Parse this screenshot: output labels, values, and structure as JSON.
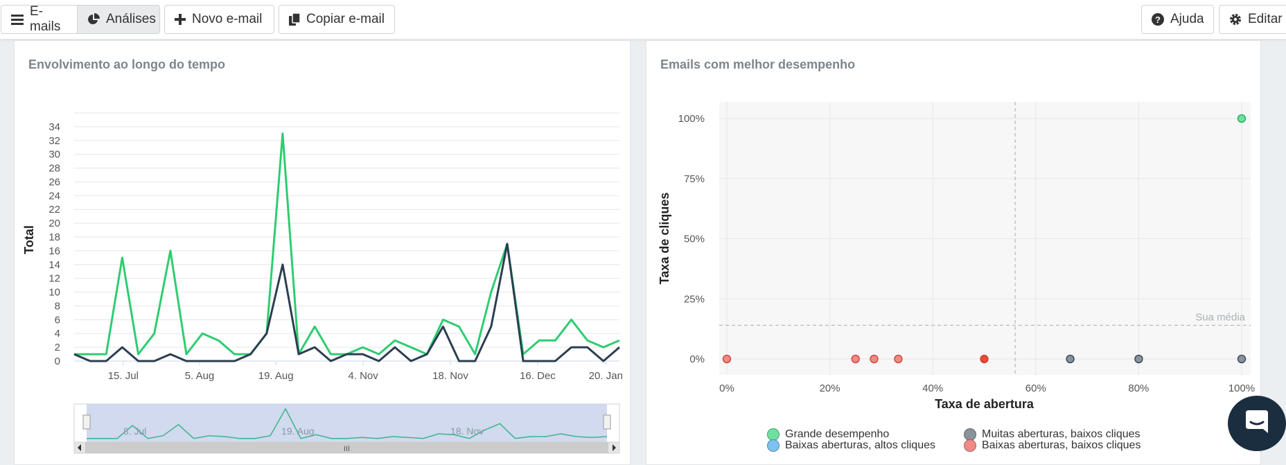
{
  "toolbar": {
    "emails_label": "E-mails",
    "analyses_label": "Análises",
    "new_email_label": "Novo e-mail",
    "copy_email_label": "Copiar e-mail",
    "help_label": "Ajuda",
    "edit_label": "Editar"
  },
  "engagement": {
    "title": "Envolvimento ao longo do tempo",
    "y_label": "Total",
    "navigator_labels": [
      "8. Jul",
      "19. Aug",
      "18. Nov"
    ],
    "navigator_handle_label": "III"
  },
  "performance": {
    "title": "Emails com melhor desempenho",
    "avg_label": "Sua média",
    "legend": [
      {
        "label": "Grande desempenho",
        "color": "#6ee0a0"
      },
      {
        "label": "Muitas aberturas, baixos cliques",
        "color": "#8a929a"
      },
      {
        "label": "Baixas aberturas, altos cliques",
        "color": "#7ec2f0"
      },
      {
        "label": "Baixas aberturas, baixos cliques",
        "color": "#f08a84"
      }
    ]
  },
  "colors": {
    "green_series": "#2ecc71",
    "dark_series": "#2c3e50",
    "accent_chat": "#1b2e3f"
  },
  "chart_data": [
    {
      "type": "line",
      "title": "Envolvimento ao longo do tempo",
      "ylabel": "Total",
      "xlabel": "",
      "ylim": [
        0,
        36
      ],
      "y_ticks": [
        0,
        2,
        4,
        6,
        8,
        10,
        12,
        14,
        16,
        18,
        20,
        22,
        24,
        26,
        28,
        30,
        32,
        34
      ],
      "x_tick_labels": [
        "15. Jul",
        "5. Aug",
        "19. Aug",
        "4. Nov",
        "18. Nov",
        "16. Dec",
        "20. Jan"
      ],
      "grid": true,
      "series": [
        {
          "color": "#2ecc71",
          "values": [
            1,
            1,
            1,
            15,
            1,
            4,
            16,
            1,
            4,
            3,
            1,
            1,
            4,
            33,
            1,
            5,
            1,
            1,
            2,
            1,
            3,
            2,
            1,
            6,
            5,
            1,
            10,
            17,
            1,
            3,
            3,
            6,
            3,
            2,
            3
          ]
        },
        {
          "color": "#2c3e50",
          "values": [
            1,
            0,
            0,
            2,
            0,
            0,
            1,
            0,
            0,
            0,
            0,
            1,
            4,
            14,
            1,
            2,
            0,
            1,
            1,
            0,
            2,
            0,
            1,
            5,
            0,
            0,
            5,
            17,
            0,
            0,
            0,
            2,
            2,
            0,
            2
          ]
        }
      ]
    },
    {
      "type": "scatter",
      "title": "Emails com melhor desempenho",
      "xlabel": "Taxa de abertura",
      "ylabel": "Taxa de cliques",
      "xlim": [
        0,
        100
      ],
      "ylim": [
        0,
        100
      ],
      "x_ticks": [
        "0%",
        "20%",
        "40%",
        "60%",
        "80%",
        "100%"
      ],
      "y_ticks": [
        "0%",
        "25%",
        "50%",
        "75%",
        "100%"
      ],
      "avg_open_rate": 56,
      "avg_click_rate": 14,
      "grid": true,
      "legend_position": "bottom",
      "series": [
        {
          "name": "Grande desempenho",
          "color": "#6ee0a0",
          "points": [
            [
              100,
              100
            ]
          ]
        },
        {
          "name": "Muitas aberturas, baixos cliques",
          "color": "#8a929a",
          "points": [
            [
              66.7,
              0
            ],
            [
              80,
              0
            ],
            [
              100,
              0
            ]
          ]
        },
        {
          "name": "Baixas aberturas, altos cliques",
          "color": "#7ec2f0",
          "points": []
        },
        {
          "name": "Baixas aberturas, baixos cliques",
          "color": "#f08a84",
          "points": [
            [
              0,
              0
            ],
            [
              25,
              0
            ],
            [
              28.6,
              0
            ],
            [
              33.3,
              0
            ],
            [
              50,
              0
            ]
          ]
        }
      ]
    }
  ]
}
